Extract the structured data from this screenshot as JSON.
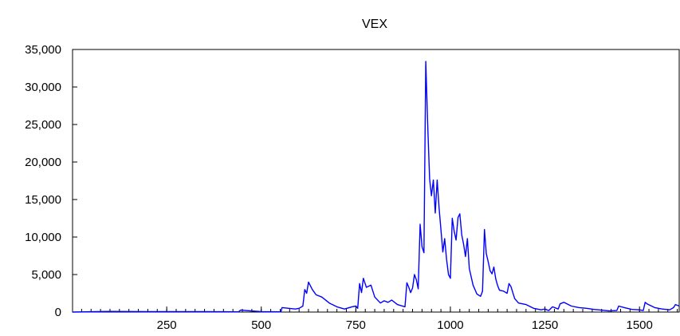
{
  "chart_data": {
    "type": "line",
    "title": "VEX",
    "xlabel": "",
    "ylabel": "",
    "xlim": [
      1,
      1605
    ],
    "ylim": [
      0,
      35000
    ],
    "x_ticks": [
      250,
      500,
      750,
      1000,
      1250,
      1500
    ],
    "x_tick_labels": [
      "250",
      "500",
      "750",
      "1000",
      "1250",
      "1500"
    ],
    "y_ticks": [
      0,
      5000,
      10000,
      15000,
      20000,
      25000,
      30000,
      35000
    ],
    "y_tick_labels": [
      "0",
      "5,000",
      "10,000",
      "15,000",
      "20,000",
      "25,000",
      "30,000",
      "35,000"
    ],
    "grid": false,
    "legend": false,
    "series_color": "#0000ff",
    "series": [
      {
        "x": [
          1,
          100,
          200,
          300,
          400,
          440,
          445,
          500,
          552,
          555,
          590,
          600,
          610,
          615,
          620,
          625,
          635,
          645,
          660,
          680,
          700,
          720,
          740,
          750,
          755,
          760,
          765,
          770,
          778,
          790,
          800,
          815,
          825,
          835,
          845,
          860,
          880,
          885,
          890,
          895,
          900,
          905,
          910,
          915,
          920,
          925,
          930,
          935,
          940,
          945,
          950,
          955,
          960,
          965,
          970,
          975,
          980,
          985,
          990,
          995,
          1000,
          1005,
          1010,
          1015,
          1020,
          1025,
          1030,
          1035,
          1040,
          1045,
          1050,
          1060,
          1070,
          1080,
          1085,
          1090,
          1095,
          1100,
          1105,
          1110,
          1115,
          1120,
          1125,
          1130,
          1140,
          1150,
          1155,
          1160,
          1170,
          1180,
          1200,
          1220,
          1240,
          1250,
          1260,
          1270,
          1285,
          1290,
          1300,
          1320,
          1340,
          1360,
          1380,
          1400,
          1420,
          1440,
          1445,
          1460,
          1480,
          1500,
          1510,
          1515,
          1520,
          1540,
          1560,
          1580,
          1590,
          1595,
          1600,
          1605
        ],
        "y": [
          0,
          80,
          50,
          60,
          40,
          30,
          250,
          50,
          30,
          600,
          400,
          500,
          800,
          3000,
          2500,
          4000,
          3000,
          2300,
          2000,
          1200,
          700,
          400,
          700,
          800,
          500,
          3800,
          2600,
          4500,
          3300,
          3600,
          2000,
          1200,
          1500,
          1300,
          1600,
          1000,
          700,
          3900,
          3300,
          2600,
          3200,
          5000,
          4300,
          3100,
          11700,
          8700,
          7900,
          33400,
          25000,
          17800,
          15500,
          17600,
          13200,
          17600,
          14000,
          11000,
          8000,
          9800,
          7000,
          5000,
          4500,
          12500,
          10800,
          9600,
          12600,
          13100,
          10300,
          9000,
          7400,
          9800,
          5800,
          3600,
          2400,
          2100,
          2800,
          11000,
          7800,
          6700,
          5500,
          5100,
          6000,
          4400,
          3500,
          2900,
          2800,
          2500,
          3800,
          3400,
          1800,
          1200,
          1000,
          500,
          300,
          400,
          200,
          700,
          400,
          1100,
          1300,
          800,
          600,
          500,
          350,
          250,
          150,
          200,
          800,
          600,
          350,
          300,
          200,
          1300,
          1100,
          600,
          400,
          300,
          600,
          1000,
          900,
          800
        ]
      }
    ]
  }
}
